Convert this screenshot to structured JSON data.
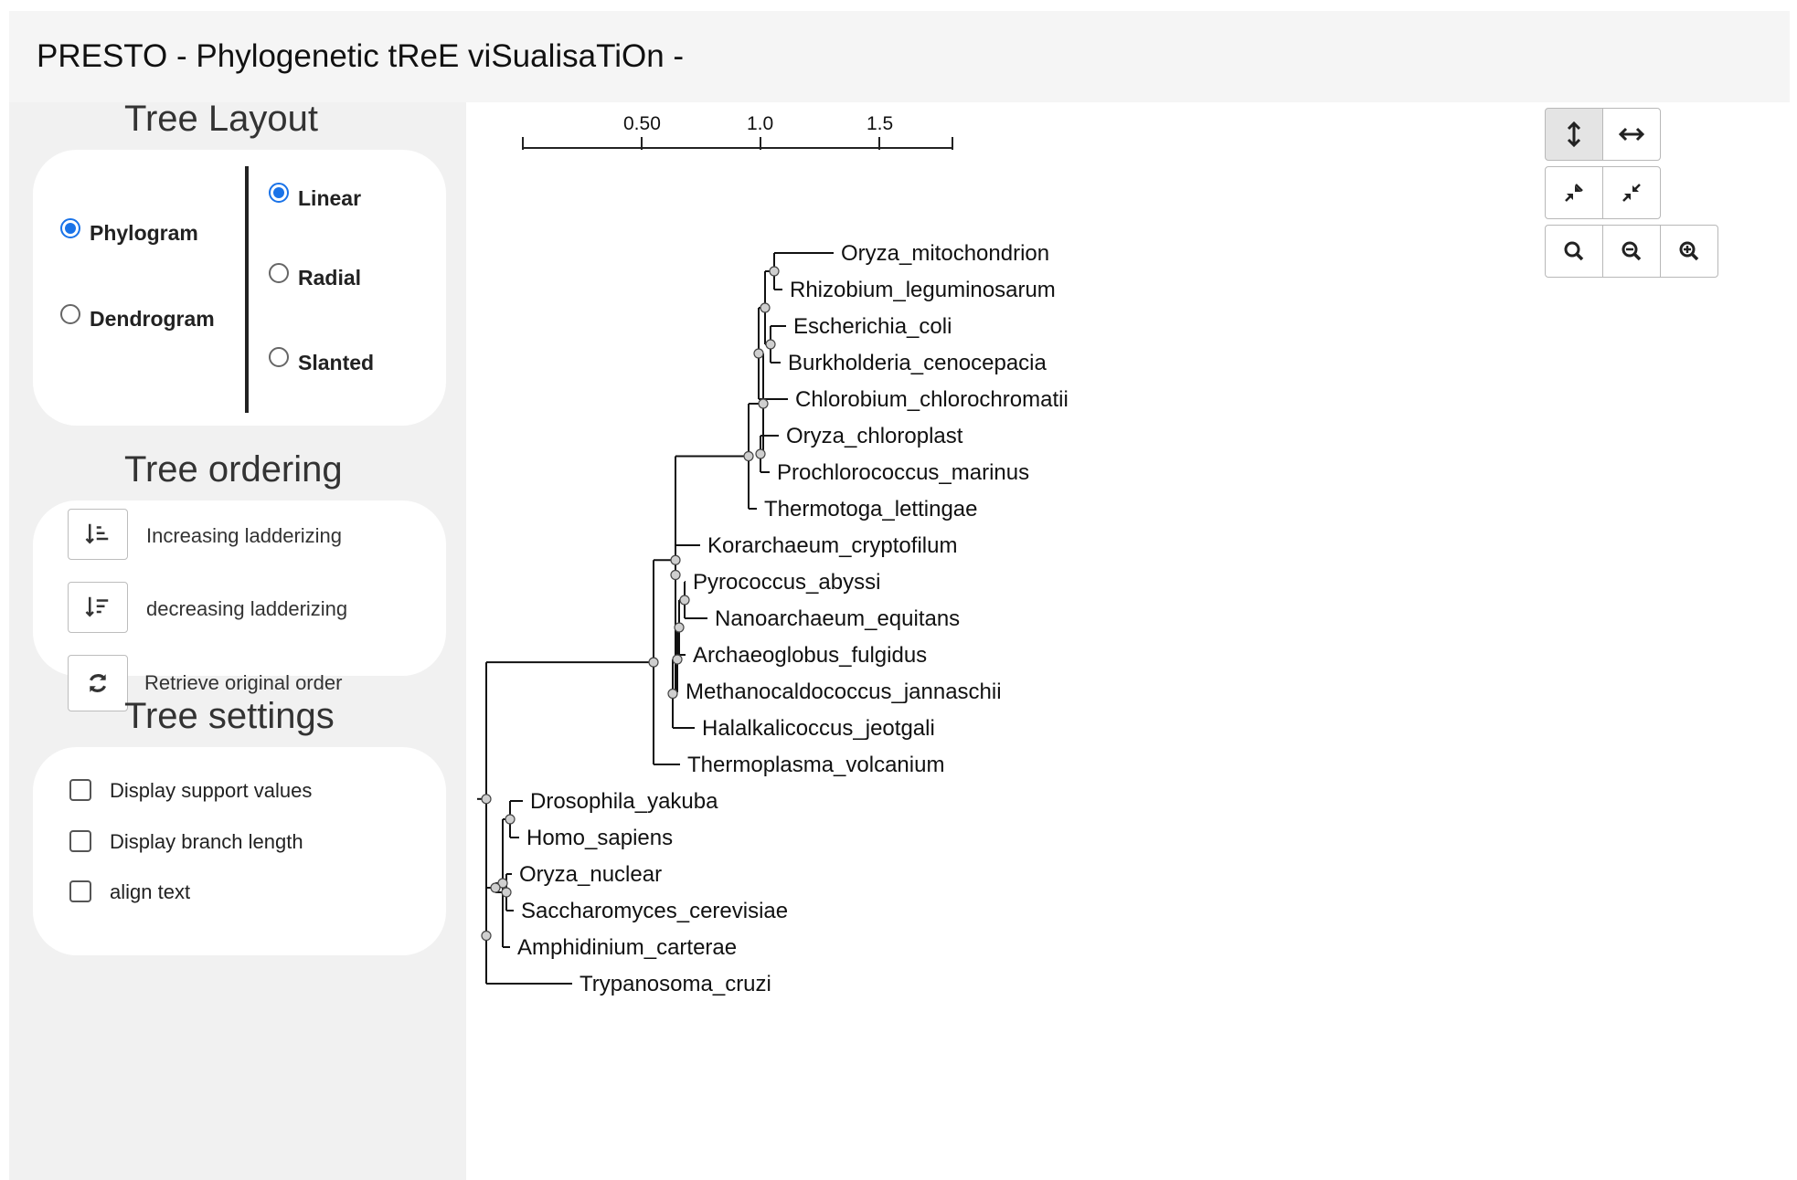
{
  "app": {
    "title": "PRESTO - Phylogenetic tReE viSualisaTiOn -"
  },
  "layout": {
    "title": "Tree Layout",
    "types": [
      {
        "label": "Phylogram",
        "checked": true
      },
      {
        "label": "Dendrogram",
        "checked": false
      }
    ],
    "styles": [
      {
        "label": "Linear",
        "checked": true
      },
      {
        "label": "Radial",
        "checked": false
      },
      {
        "label": "Slanted",
        "checked": false
      }
    ]
  },
  "ordering": {
    "title": "Tree ordering",
    "options": [
      {
        "label": "Increasing ladderizing",
        "icon": "sort-ascending-icon"
      },
      {
        "label": "decreasing ladderizing",
        "icon": "sort-descending-icon"
      },
      {
        "label": "Retrieve original order",
        "icon": "refresh-icon"
      }
    ]
  },
  "settings": {
    "title": "Tree settings",
    "options": [
      {
        "label": "Display support values",
        "checked": false
      },
      {
        "label": "Display branch length",
        "checked": false
      },
      {
        "label": "align text",
        "checked": false
      }
    ]
  },
  "toolbar": {
    "groups": [
      [
        {
          "icon": "vertical-stretch-icon",
          "active": true
        },
        {
          "icon": "horizontal-stretch-icon",
          "active": false
        }
      ],
      [
        {
          "icon": "compress-vertical-icon",
          "active": false
        },
        {
          "icon": "compress-horizontal-icon",
          "active": false
        }
      ],
      [
        {
          "icon": "zoom-reset-icon",
          "active": false
        },
        {
          "icon": "zoom-out-icon",
          "active": false
        },
        {
          "icon": "zoom-in-icon",
          "active": false
        }
      ]
    ]
  },
  "scale": {
    "ticks": [
      "0.50",
      "1.0",
      "1.5"
    ]
  },
  "tree": {
    "leaves": [
      "Oryza_mitochondrion",
      "Rhizobium_leguminosarum",
      "Escherichia_coli",
      "Burkholderia_cenocepacia",
      "Chlorobium_chlorochromatii",
      "Oryza_chloroplast",
      "Prochlorococcus_marinus",
      "Thermotoga_lettingae",
      "Korarchaeum_cryptofilum",
      "Pyrococcus_abyssi",
      "Nanoarchaeum_equitans",
      "Archaeoglobus_fulgidus",
      "Methanocaldococcus_jannaschii",
      "Halalkalicoccus_jeotgali",
      "Thermoplasma_volcanium",
      "Drosophila_yakuba",
      "Homo_sapiens",
      "Oryza_nuclear",
      "Saccharomyces_cerevisiae",
      "Amphidinium_carterae",
      "Trypanosoma_cruzi"
    ]
  }
}
